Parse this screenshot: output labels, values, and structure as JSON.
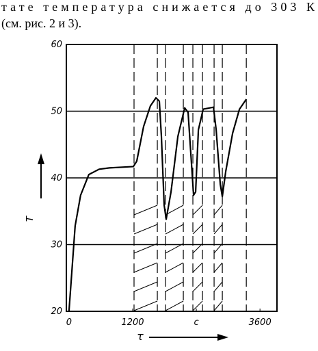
{
  "text": [
    "тате температура снижается до 303 К",
    "(см. рис. 2 и 3)."
  ],
  "chart_data": {
    "type": "line",
    "x_label": "τ",
    "y_label": "T",
    "xlim": [
      -50,
      3920
    ],
    "ylim": [
      20,
      60
    ],
    "xticks": [
      0,
      1200,
      {
        "value": 2400,
        "label": "c"
      },
      3600
    ],
    "yticks": [
      20,
      30,
      40,
      50,
      60
    ],
    "grid": true,
    "vlines": [
      1226,
      1665,
      1819,
      2155,
      2335,
      2516,
      2735,
      2890,
      3342
    ],
    "series": [
      {
        "color": "#000000",
        "x": [
          0,
          116,
          219,
          374,
          568,
          761,
          1213,
          1277,
          1406,
          1535,
          1639,
          1703,
          1742,
          1794,
          1832,
          1923,
          2052,
          2181,
          2245,
          2310,
          2348,
          2387,
          2439,
          2529,
          2723,
          2774,
          2852,
          2890,
          2955,
          3084,
          3213,
          3342
        ],
        "values": [
          20,
          32.8,
          37.4,
          40.5,
          41.3,
          41.5,
          41.7,
          42.5,
          47.7,
          50.8,
          52,
          51.5,
          46.2,
          35.9,
          33.8,
          37.9,
          46.2,
          50.5,
          49.8,
          42,
          37.4,
          37.9,
          47.2,
          50.3,
          50.6,
          47.2,
          39,
          37.2,
          41,
          46.7,
          50.3,
          51.8
        ]
      }
    ]
  }
}
